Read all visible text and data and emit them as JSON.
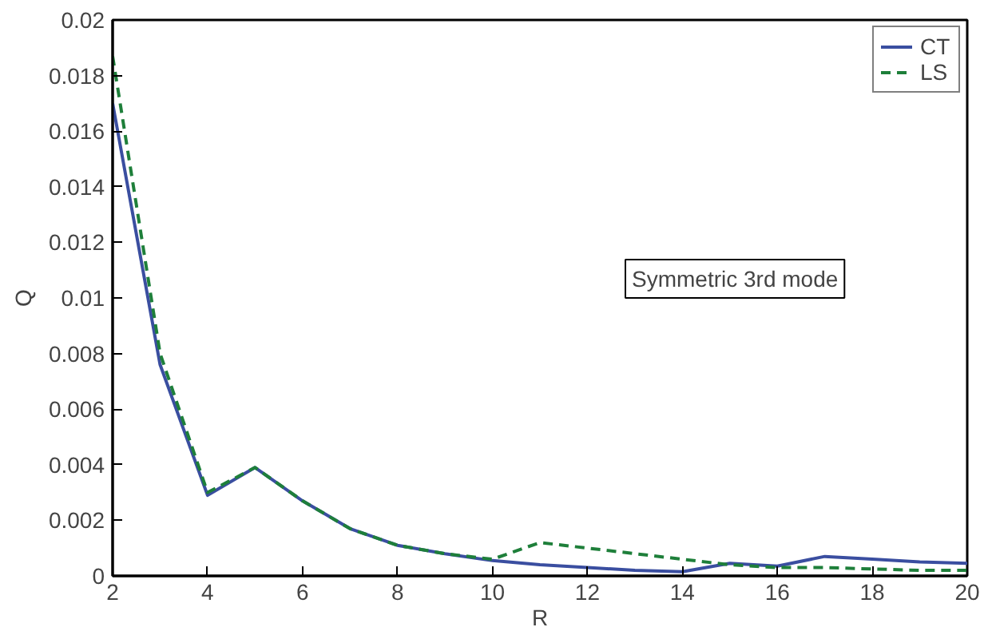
{
  "chart_data": {
    "type": "line",
    "xlabel": "R",
    "ylabel": "Q",
    "x": [
      2,
      3,
      4,
      5,
      6,
      7,
      8,
      9,
      10,
      11,
      12,
      13,
      14,
      15,
      16,
      17,
      18,
      19,
      20
    ],
    "series": [
      {
        "name": "CT",
        "color": "#3a4ea0",
        "line_style": "solid",
        "values": [
          0.017,
          0.0076,
          0.0029,
          0.0039,
          0.0027,
          0.0017,
          0.0011,
          0.0008,
          0.00055,
          0.0004,
          0.0003,
          0.0002,
          0.00015,
          0.00045,
          0.00035,
          0.0007,
          0.0006,
          0.0005,
          0.00045
        ]
      },
      {
        "name": "LS",
        "color": "#1e7f3a",
        "line_style": "dashed",
        "values": [
          0.0187,
          0.008,
          0.003,
          0.0039,
          0.0027,
          0.0017,
          0.0011,
          0.0008,
          0.0006,
          0.0012,
          0.001,
          0.0008,
          0.0006,
          0.0004,
          0.0003,
          0.0003,
          0.00025,
          0.0002,
          0.0002
        ]
      }
    ],
    "xlim": [
      2,
      20
    ],
    "ylim": [
      0,
      0.02
    ],
    "xticks": [
      2,
      4,
      6,
      8,
      10,
      12,
      14,
      16,
      18,
      20
    ],
    "yticks": [
      0,
      0.002,
      0.004,
      0.006,
      0.008,
      0.01,
      0.012,
      0.014,
      0.016,
      0.018,
      0.02
    ],
    "annotations": [
      "Symmetric 3rd mode"
    ],
    "legend": "top right",
    "grid": false,
    "marker": "none"
  }
}
